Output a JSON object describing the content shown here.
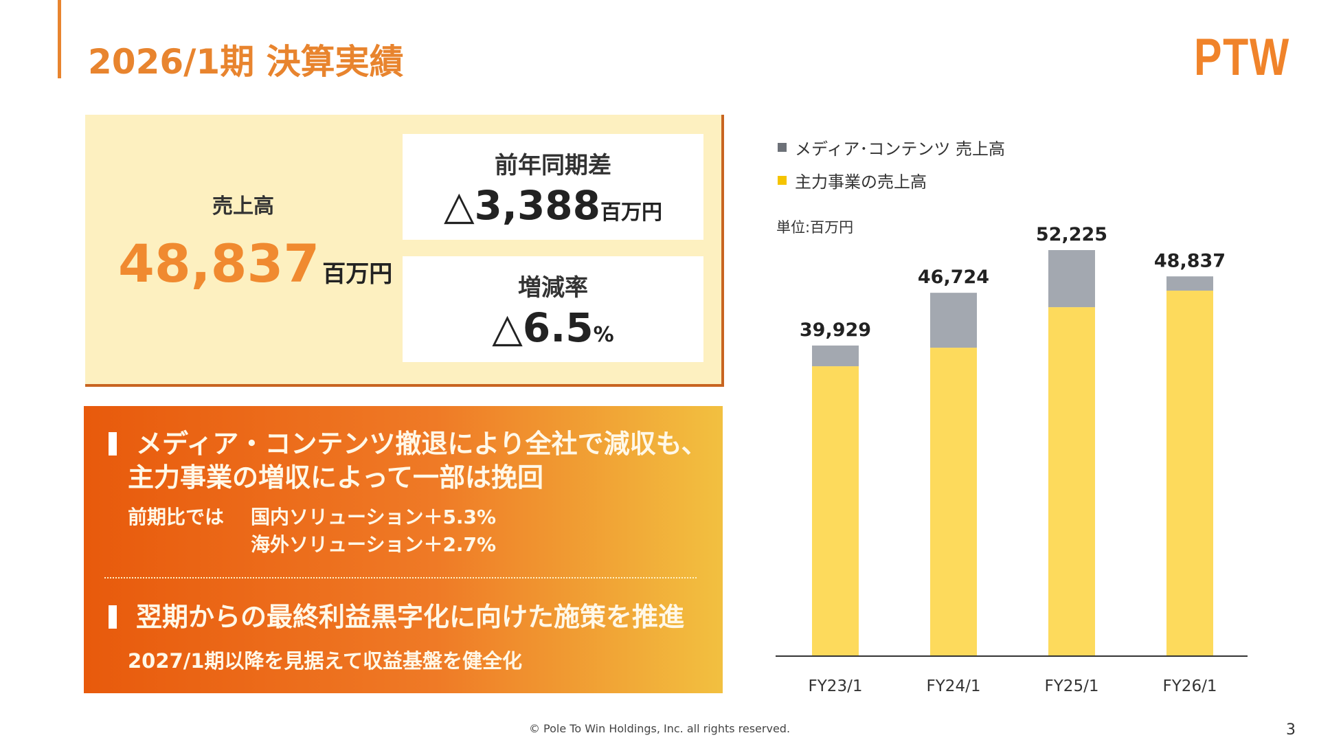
{
  "header": {
    "title": "2026/1期 決算実績",
    "logo": "PTW",
    "accent_color": "#e8842e"
  },
  "sales": {
    "label": "売上高",
    "value": "48,837",
    "unit": "百万円"
  },
  "yoy_diff": {
    "label": "前年同期差",
    "value": "△3,388",
    "unit": "百万円"
  },
  "change_rate": {
    "label": "増減率",
    "value": "△6.5",
    "unit": "%"
  },
  "messages": {
    "point1_line1": "メディア・コンテンツ撤退により全社で減収も、",
    "point1_line2": "主力事業の増収によって一部は挽回",
    "comparison_label": "前期比では",
    "domestic": "国内ソリューション＋5.3%",
    "overseas": "海外ソリューション＋2.7%",
    "point2": "翌期からの最終利益黒字化に向けた施策を推進",
    "point2_sub": "2027/1期以降を見据えて収益基盤を健全化"
  },
  "chart_data": {
    "type": "bar",
    "stacked": true,
    "unit_label": "単位:百万円",
    "categories": [
      "FY23/1",
      "FY24/1",
      "FY25/1",
      "FY26/1"
    ],
    "series": [
      {
        "name": "主力事業の売上高",
        "color": "#fdda5c",
        "values": [
          37260,
          39650,
          44870,
          47000
        ]
      },
      {
        "name": "メディア･コンテンツ 売上高",
        "color": "#a3a8b0",
        "values": [
          2669,
          7074,
          7355,
          1837
        ]
      }
    ],
    "totals": [
      "39,929",
      "46,724",
      "52,225",
      "48,837"
    ],
    "ylim": [
      0,
      60000
    ],
    "grid": false,
    "legend": "top-left"
  },
  "footer": {
    "copyright": "© Pole To Win Holdings, Inc. all rights reserved.",
    "page": "3"
  }
}
